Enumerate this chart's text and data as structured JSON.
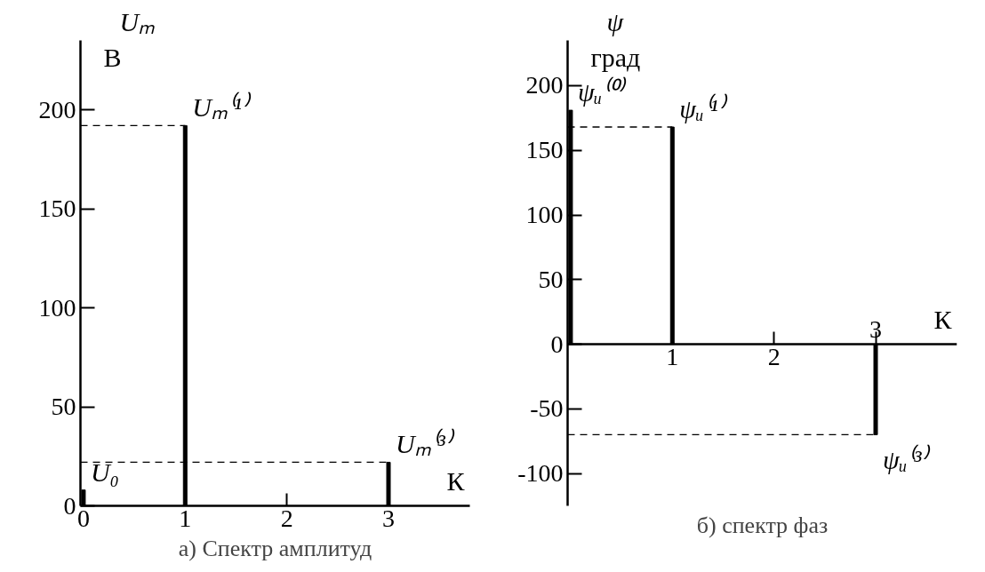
{
  "chart_data": [
    {
      "type": "bar",
      "title": "а) Спектр амплитуд",
      "xlabel": "К",
      "ylabel": "Uₘ",
      "annotations": [
        "В",
        {
          "text": "U₀",
          "x": 0,
          "y": 8
        },
        {
          "text": "Uₘ⁽¹⁾",
          "x": 1,
          "y": 192
        },
        {
          "text": "Uₘ⁽³⁾",
          "x": 3,
          "y": 22
        }
      ],
      "x": [
        0,
        1,
        3
      ],
      "values": [
        8,
        192,
        22
      ],
      "color": "#000000",
      "xlim": [
        -0.03,
        3.8
      ],
      "xticks": [
        0,
        1,
        2,
        3
      ],
      "ylim": [
        0,
        235
      ],
      "yticks": [
        0,
        50,
        100,
        150,
        200
      ],
      "ref_lines": [
        {
          "axis": "y",
          "value": 192,
          "line_style": "dashed",
          "color": "#000000"
        },
        {
          "axis": "y",
          "value": 22,
          "line_style": "dashed",
          "color": "#000000"
        }
      ],
      "grid": false
    },
    {
      "type": "bar",
      "title": "б) спектр фаз",
      "xlabel": "К",
      "ylabel": "ψ",
      "annotations": [
        "град",
        {
          "text": "ψᵤ⁽⁰⁾",
          "x": 0,
          "y": 181
        },
        {
          "text": "ψᵤ⁽¹⁾",
          "x": 1,
          "y": 168
        },
        {
          "text": "ψᵤ⁽³⁾",
          "x": 3,
          "y": -70
        },
        {
          "text": "3",
          "x": 3,
          "y": 0
        }
      ],
      "x": [
        0,
        1,
        3
      ],
      "values": [
        181,
        168,
        -70
      ],
      "color": "#000000",
      "xlim": [
        -0.03,
        3.8
      ],
      "xticks": [
        1,
        2,
        {
          "value": 3,
          "label": null
        }
      ],
      "ylim": [
        -125,
        235
      ],
      "yticks": [
        -100,
        -50,
        0,
        50,
        100,
        150,
        200
      ],
      "ref_lines": [
        {
          "axis": "y",
          "value": 168,
          "line_style": "dashed",
          "color": "#000000"
        },
        {
          "axis": "y",
          "value": -70,
          "line_style": "dashed",
          "color": "#000000"
        }
      ],
      "grid": false
    }
  ]
}
